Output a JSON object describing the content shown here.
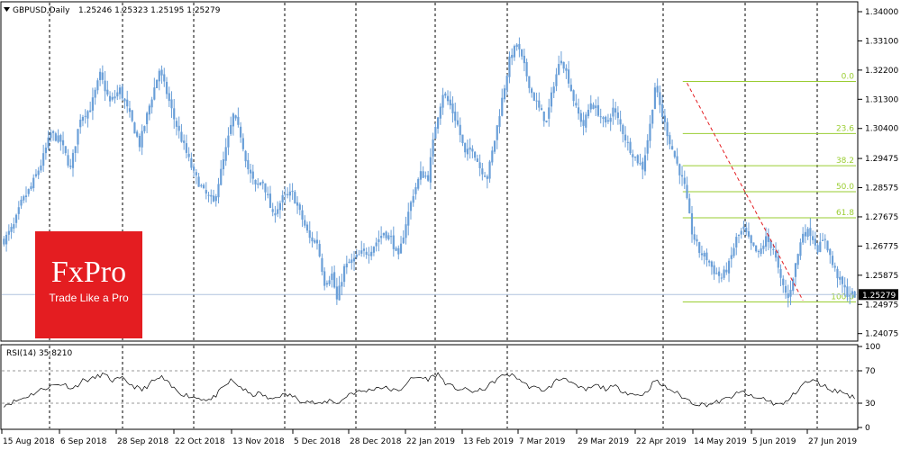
{
  "header": {
    "symbol": "GBPUSD,Daily",
    "ohlc": "1.25246 1.25323 1.25195 1.25279"
  },
  "logo": {
    "brand": "FxPro",
    "tagline": "Trade Like a Pro"
  },
  "chart_data": [
    {
      "type": "candlestick",
      "title": "GBPUSD,Daily",
      "ylim": [
        1.239,
        1.3425
      ],
      "y_ticks": [
        "1.34000",
        "1.33100",
        "1.32200",
        "1.31300",
        "1.30400",
        "1.29475",
        "1.28575",
        "1.27675",
        "1.26775",
        "1.25875",
        "1.24975",
        "1.24075"
      ],
      "current_price_label": "1.25279",
      "current_price": 1.25279,
      "x_ticks": [
        "15 Aug 2018",
        "6 Sep 2018",
        "28 Sep 2018",
        "22 Oct 2018",
        "13 Nov 2018",
        "5 Dec 2018",
        "28 Dec 2018",
        "22 Jan 2019",
        "13 Feb 2019",
        "7 Mar 2019",
        "29 Mar 2019",
        "22 Apr 2019",
        "14 May 2019",
        "5 Jun 2019",
        "27 Jun 2019"
      ],
      "grid": "vertical dashed",
      "close_path": [
        [
          0,
          1.2695
        ],
        [
          4,
          1.274
        ],
        [
          7,
          1.281
        ],
        [
          11,
          1.286
        ],
        [
          15,
          1.293
        ],
        [
          19,
          1.3025
        ],
        [
          23,
          1.3
        ],
        [
          27,
          1.2915
        ],
        [
          31,
          1.3075
        ],
        [
          35,
          1.31
        ],
        [
          39,
          1.3205
        ],
        [
          43,
          1.312
        ],
        [
          47,
          1.316
        ],
        [
          51,
          1.308
        ],
        [
          55,
          1.299
        ],
        [
          59,
          1.311
        ],
        [
          63,
          1.322
        ],
        [
          66,
          1.315
        ],
        [
          69,
          1.307
        ],
        [
          73,
          1.2985
        ],
        [
          77,
          1.29
        ],
        [
          81,
          1.2845
        ],
        [
          85,
          1.281
        ],
        [
          89,
          1.294
        ],
        [
          93,
          1.308
        ],
        [
          96,
          1.302
        ],
        [
          99,
          1.2915
        ],
        [
          102,
          1.286
        ],
        [
          105,
          1.288
        ],
        [
          109,
          1.277
        ],
        [
          113,
          1.2825
        ],
        [
          117,
          1.284
        ],
        [
          121,
          1.276
        ],
        [
          124,
          1.27
        ],
        [
          127,
          1.269
        ],
        [
          130,
          1.2565
        ],
        [
          133,
          1.259
        ],
        [
          135,
          1.251
        ],
        [
          138,
          1.261
        ],
        [
          141,
          1.263
        ],
        [
          145,
          1.2655
        ],
        [
          148,
          1.266
        ],
        [
          151,
          1.269
        ],
        [
          154,
          1.272
        ],
        [
          157,
          1.27
        ],
        [
          160,
          1.264
        ],
        [
          163,
          1.275
        ],
        [
          166,
          1.284
        ],
        [
          169,
          1.29
        ],
        [
          172,
          1.289
        ],
        [
          175,
          1.305
        ],
        [
          178,
          1.315
        ],
        [
          181,
          1.311
        ],
        [
          184,
          1.305
        ],
        [
          187,
          1.296
        ],
        [
          190,
          1.298
        ],
        [
          193,
          1.292
        ],
        [
          196,
          1.289
        ],
        [
          199,
          1.3005
        ],
        [
          202,
          1.313
        ],
        [
          205,
          1.325
        ],
        [
          208,
          1.33
        ],
        [
          211,
          1.323
        ],
        [
          214,
          1.315
        ],
        [
          217,
          1.31
        ],
        [
          220,
          1.306
        ],
        [
          223,
          1.318
        ],
        [
          226,
          1.326
        ],
        [
          229,
          1.319
        ],
        [
          232,
          1.31
        ],
        [
          235,
          1.305
        ],
        [
          238,
          1.312
        ],
        [
          241,
          1.309
        ],
        [
          244,
          1.305
        ],
        [
          247,
          1.31
        ],
        [
          250,
          1.305
        ],
        [
          253,
          1.299
        ],
        [
          256,
          1.295
        ],
        [
          259,
          1.292
        ],
        [
          262,
          1.305
        ],
        [
          264,
          1.317
        ],
        [
          267,
          1.308
        ],
        [
          270,
          1.3
        ],
        [
          273,
          1.293
        ],
        [
          276,
          1.286
        ],
        [
          279,
          1.272
        ],
        [
          282,
          1.266
        ],
        [
          285,
          1.264
        ],
        [
          288,
          1.26
        ],
        [
          291,
          1.258
        ],
        [
          294,
          1.262
        ],
        [
          297,
          1.27
        ],
        [
          300,
          1.273
        ],
        [
          303,
          1.268
        ],
        [
          306,
          1.265
        ],
        [
          309,
          1.27
        ],
        [
          312,
          1.267
        ],
        [
          315,
          1.257
        ],
        [
          318,
          1.2515
        ],
        [
          321,
          1.262
        ],
        [
          324,
          1.272
        ],
        [
          327,
          1.272
        ],
        [
          330,
          1.267
        ],
        [
          333,
          1.27
        ],
        [
          336,
          1.262
        ],
        [
          339,
          1.257
        ],
        [
          342,
          1.253
        ],
        [
          345,
          1.2528
        ]
      ],
      "fibonacci": {
        "high": 1.3185,
        "low": 1.2505,
        "levels": [
          "0.0",
          "23.6",
          "38.2",
          "50.0",
          "61.8",
          "100.0"
        ],
        "ratios": [
          0,
          0.236,
          0.382,
          0.5,
          0.618,
          1.0
        ],
        "start_bar": 276
      },
      "trendline": {
        "from_bar": 277,
        "from_price": 1.318,
        "to_bar": 324,
        "to_price": 1.251,
        "color": "#e41d21",
        "style": "dashed"
      },
      "colors": {
        "candle": "#6a9fd8",
        "fib": "#9acd32",
        "grid": "#000000",
        "price_line": "#b0c4de"
      }
    },
    {
      "type": "line",
      "title": "RSI(14) 35.8210",
      "ylim": [
        0,
        100
      ],
      "y_ticks": [
        "100",
        "70",
        "30",
        "0"
      ],
      "levels": [
        70,
        30
      ],
      "series": [
        {
          "values": [
            [
              0,
              28
            ],
            [
              6,
              34
            ],
            [
              12,
              42
            ],
            [
              16,
              48
            ],
            [
              20,
              52
            ],
            [
              24,
              54
            ],
            [
              28,
              48
            ],
            [
              32,
              58
            ],
            [
              36,
              60
            ],
            [
              40,
              66
            ],
            [
              44,
              58
            ],
            [
              48,
              60
            ],
            [
              52,
              52
            ],
            [
              56,
              46
            ],
            [
              60,
              56
            ],
            [
              64,
              62
            ],
            [
              68,
              50
            ],
            [
              72,
              42
            ],
            [
              76,
              38
            ],
            [
              80,
              36
            ],
            [
              84,
              34
            ],
            [
              88,
              46
            ],
            [
              92,
              58
            ],
            [
              96,
              50
            ],
            [
              100,
              40
            ],
            [
              104,
              42
            ],
            [
              108,
              34
            ],
            [
              112,
              40
            ],
            [
              116,
              40
            ],
            [
              120,
              34
            ],
            [
              124,
              32
            ],
            [
              128,
              28
            ],
            [
              132,
              34
            ],
            [
              136,
              30
            ],
            [
              140,
              42
            ],
            [
              144,
              44
            ],
            [
              148,
              46
            ],
            [
              152,
              50
            ],
            [
              156,
              48
            ],
            [
              160,
              44
            ],
            [
              164,
              58
            ],
            [
              168,
              62
            ],
            [
              172,
              60
            ],
            [
              176,
              66
            ],
            [
              180,
              52
            ],
            [
              184,
              48
            ],
            [
              188,
              46
            ],
            [
              192,
              44
            ],
            [
              196,
              50
            ],
            [
              200,
              60
            ],
            [
              204,
              66
            ],
            [
              208,
              62
            ],
            [
              212,
              52
            ],
            [
              216,
              48
            ],
            [
              220,
              46
            ],
            [
              224,
              58
            ],
            [
              228,
              62
            ],
            [
              232,
              50
            ],
            [
              236,
              46
            ],
            [
              240,
              52
            ],
            [
              244,
              48
            ],
            [
              248,
              50
            ],
            [
              252,
              44
            ],
            [
              256,
              40
            ],
            [
              260,
              42
            ],
            [
              264,
              58
            ],
            [
              268,
              50
            ],
            [
              272,
              44
            ],
            [
              276,
              36
            ],
            [
              280,
              30
            ],
            [
              284,
              28
            ],
            [
              288,
              30
            ],
            [
              292,
              34
            ],
            [
              296,
              40
            ],
            [
              300,
              44
            ],
            [
              304,
              36
            ],
            [
              308,
              36
            ],
            [
              312,
              30
            ],
            [
              316,
              28
            ],
            [
              320,
              40
            ],
            [
              324,
              54
            ],
            [
              328,
              58
            ],
            [
              332,
              52
            ],
            [
              336,
              46
            ],
            [
              340,
              44
            ],
            [
              345,
              36
            ]
          ]
        }
      ]
    }
  ]
}
